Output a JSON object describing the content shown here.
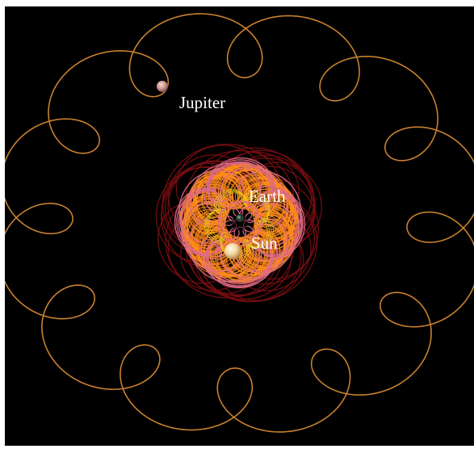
{
  "bodies": [
    {
      "id": "jupiter",
      "label": "Jupiter"
    },
    {
      "id": "earth",
      "label": "Earth"
    },
    {
      "id": "sun",
      "label": "Sun"
    }
  ],
  "colors": {
    "background": "#000000",
    "jupiter_trace": "#c8812f",
    "inner_trace": "#ff8c1a",
    "pink_trace": "#e06a86",
    "dark_red_trace": "#7a0d12",
    "yellow_trace": "#e8d21a",
    "label_text": "#ffffff"
  }
}
